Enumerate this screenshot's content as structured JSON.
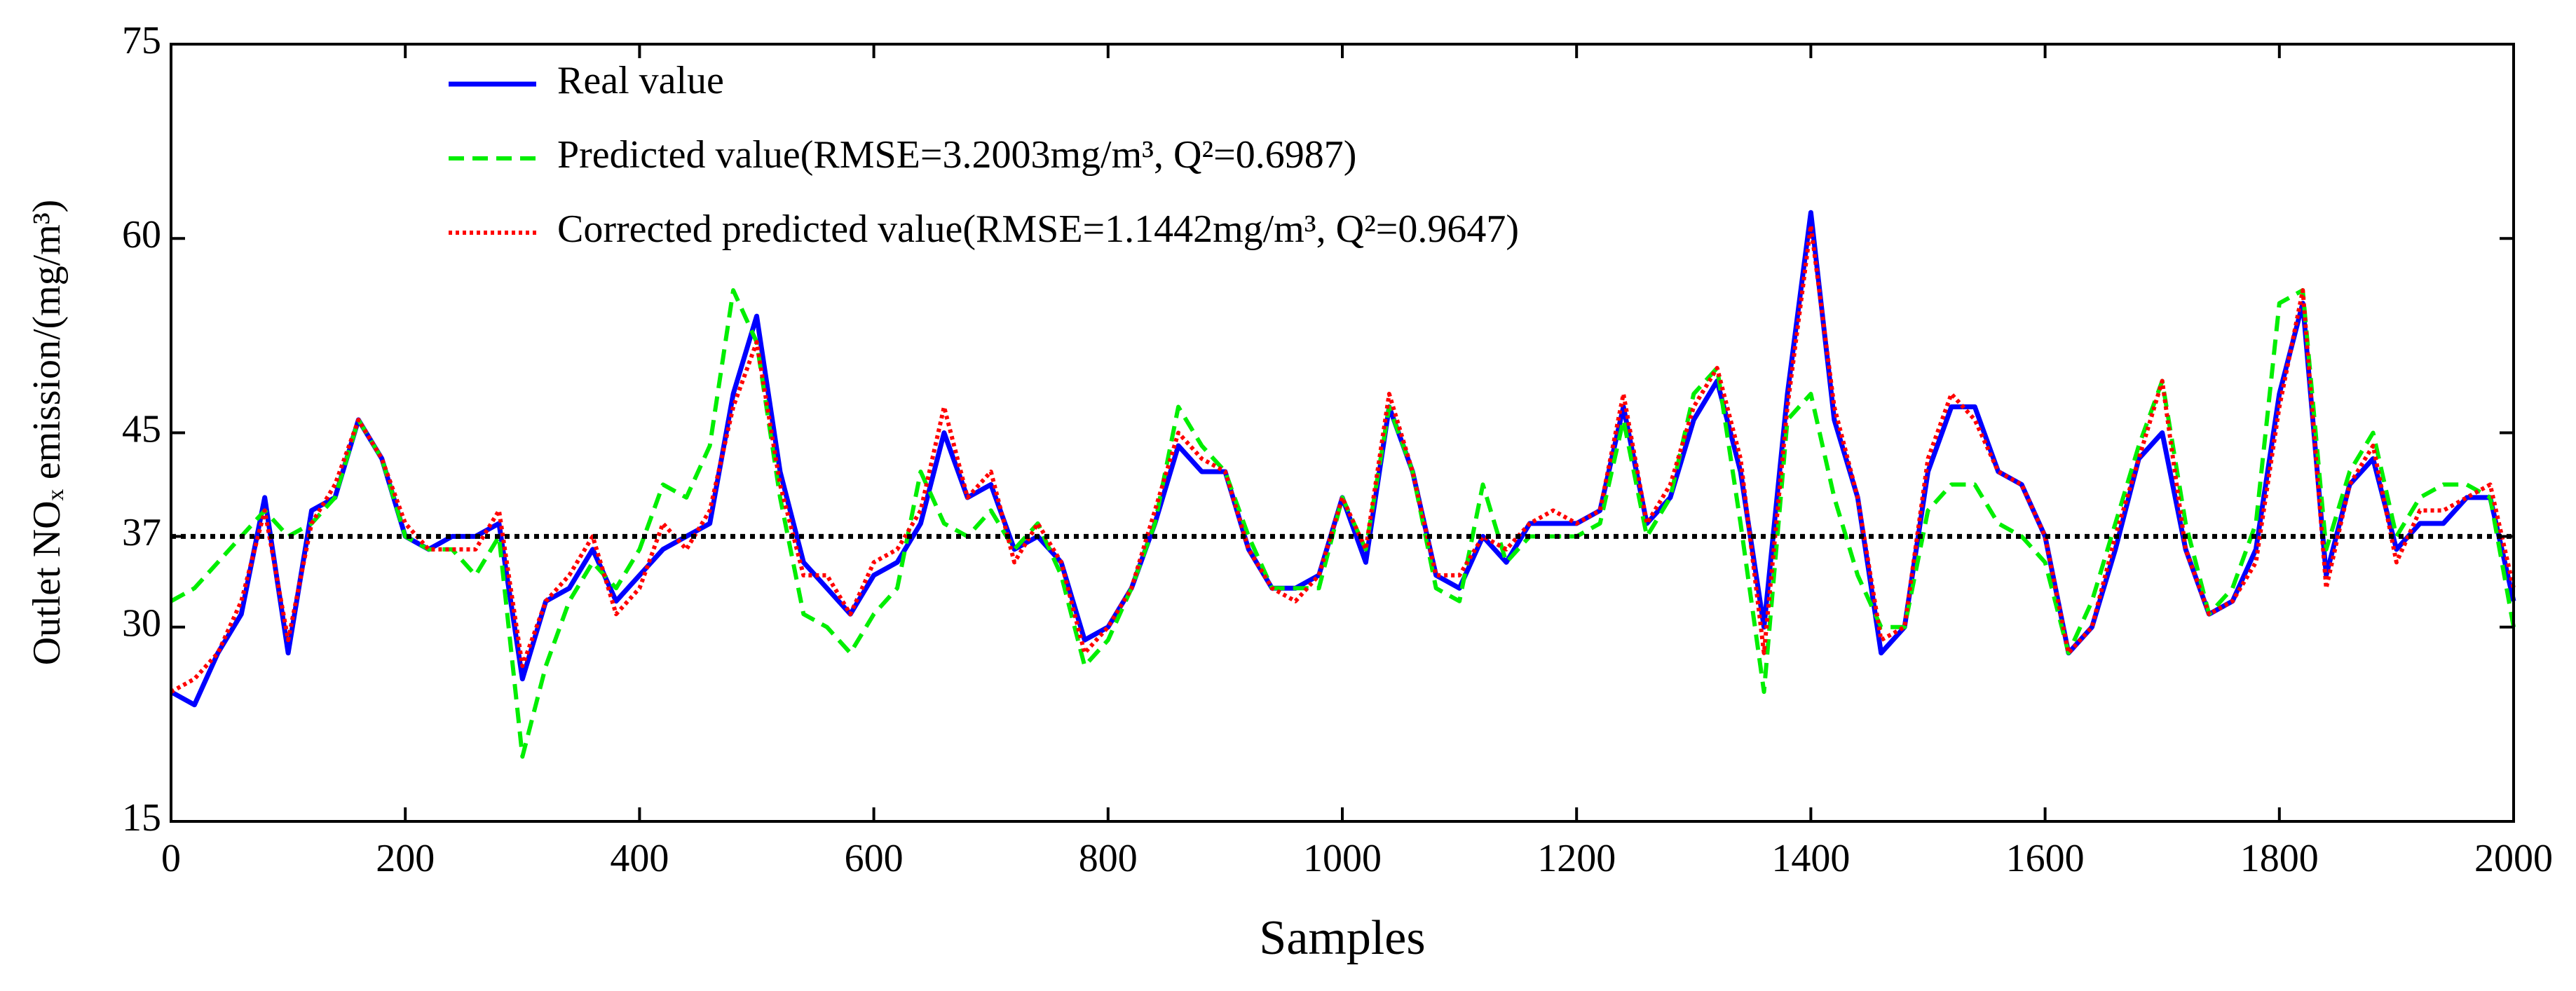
{
  "chart_data": {
    "type": "line",
    "xlabel": "Samples",
    "ylabel": "Outlet NOₓ emission/(mg/m³)",
    "x": [
      0,
      20,
      40,
      60,
      80,
      100,
      120,
      140,
      160,
      180,
      200,
      220,
      240,
      260,
      280,
      300,
      320,
      340,
      360,
      380,
      400,
      420,
      440,
      460,
      480,
      500,
      520,
      540,
      560,
      580,
      600,
      620,
      640,
      660,
      680,
      700,
      720,
      740,
      760,
      780,
      800,
      820,
      840,
      860,
      880,
      900,
      920,
      940,
      960,
      980,
      1000,
      1020,
      1040,
      1060,
      1080,
      1100,
      1120,
      1140,
      1160,
      1180,
      1200,
      1220,
      1240,
      1260,
      1280,
      1300,
      1320,
      1340,
      1360,
      1380,
      1400,
      1420,
      1440,
      1460,
      1480,
      1500,
      1520,
      1540,
      1560,
      1580,
      1600,
      1620,
      1640,
      1660,
      1680,
      1700,
      1720,
      1740,
      1760,
      1780,
      1800,
      1820,
      1840,
      1860,
      1880,
      1900,
      1920,
      1940,
      1960,
      1980,
      2000
    ],
    "series": [
      {
        "name": "Real value",
        "color": "#0000ff",
        "dash": "solid",
        "values": [
          25,
          24,
          28,
          31,
          40,
          28,
          39,
          40,
          46,
          43,
          37,
          36,
          37,
          37,
          38,
          26,
          32,
          33,
          36,
          32,
          34,
          36,
          37,
          38,
          48,
          54,
          42,
          35,
          33,
          31,
          34,
          35,
          38,
          45,
          40,
          41,
          36,
          37,
          35,
          29,
          30,
          33,
          38,
          44,
          42,
          42,
          36,
          33,
          33,
          34,
          40,
          35,
          47,
          42,
          34,
          33,
          37,
          35,
          38,
          38,
          38,
          39,
          47,
          38,
          40,
          46,
          49,
          42,
          30,
          48,
          62,
          46,
          40,
          28,
          30,
          42,
          47,
          47,
          42,
          41,
          37,
          28,
          30,
          36,
          43,
          45,
          36,
          31,
          32,
          36,
          48,
          55,
          34,
          41,
          43,
          36,
          38,
          38,
          40,
          40,
          32
        ]
      },
      {
        "name": "Predicted value(RMSE=3.2003mg/m³, Q²=0.6987)",
        "color": "#00ee00",
        "dash": "dashed",
        "values": [
          32,
          33,
          35,
          37,
          39,
          37,
          38,
          40,
          46,
          43,
          37,
          36,
          36,
          34,
          37,
          20,
          27,
          32,
          35,
          33,
          36,
          41,
          40,
          44,
          56,
          52,
          40,
          31,
          30,
          28,
          31,
          33,
          42,
          38,
          37,
          39,
          36,
          38,
          34,
          27,
          29,
          33,
          38,
          47,
          44,
          42,
          37,
          33,
          33,
          33,
          40,
          36,
          47,
          42,
          33,
          32,
          41,
          35,
          37,
          37,
          37,
          38,
          46,
          37,
          40,
          48,
          50,
          38,
          25,
          46,
          48,
          40,
          34,
          30,
          30,
          39,
          41,
          41,
          38,
          37,
          35,
          28,
          32,
          38,
          44,
          49,
          38,
          31,
          33,
          38,
          55,
          56,
          36,
          42,
          45,
          37,
          40,
          41,
          41,
          40,
          30
        ]
      },
      {
        "name": "Corrected predicted value(RMSE=1.1442mg/m³, Q²=0.9647)",
        "color": "#ff0000",
        "dash": "dotted",
        "values": [
          25,
          26,
          28,
          32,
          39,
          29,
          38,
          41,
          46,
          43,
          38,
          36,
          36,
          36,
          39,
          27,
          32,
          34,
          37,
          31,
          33,
          38,
          36,
          39,
          47,
          52,
          41,
          34,
          34,
          31,
          35,
          36,
          39,
          47,
          40,
          42,
          35,
          38,
          35,
          28,
          30,
          33,
          39,
          45,
          43,
          42,
          36,
          33,
          32,
          34,
          40,
          36,
          48,
          42,
          34,
          34,
          37,
          36,
          38,
          39,
          38,
          39,
          48,
          38,
          41,
          47,
          50,
          43,
          28,
          47,
          61,
          47,
          40,
          29,
          30,
          43,
          48,
          46,
          42,
          41,
          37,
          28,
          30,
          37,
          43,
          49,
          36,
          31,
          32,
          35,
          47,
          56,
          33,
          41,
          44,
          35,
          39,
          39,
          40,
          41,
          33
        ]
      }
    ],
    "reference_line": 37,
    "xlim": [
      0,
      2000
    ],
    "xticks": [
      0,
      200,
      400,
      600,
      800,
      1000,
      1200,
      1400,
      1600,
      1800,
      2000
    ],
    "ylim": [
      15,
      75
    ],
    "yticks": [
      15,
      30,
      37,
      45,
      60,
      75
    ],
    "legend": "upper left",
    "grid": false
  }
}
